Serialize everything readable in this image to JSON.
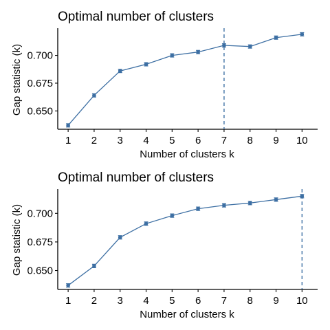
{
  "chart_data": [
    {
      "type": "line",
      "title": "Optimal number of clusters",
      "xlabel": "Number of clusters k",
      "ylabel": "Gap statistic (k)",
      "x": [
        1,
        2,
        3,
        4,
        5,
        6,
        7,
        8,
        9,
        10
      ],
      "xticks": [
        "1",
        "2",
        "3",
        "4",
        "5",
        "6",
        "7",
        "8",
        "9",
        "10"
      ],
      "values": [
        0.637,
        0.664,
        0.686,
        0.692,
        0.7,
        0.703,
        0.709,
        0.708,
        0.716,
        0.719
      ],
      "error": 0.0015,
      "yticks": [
        0.65,
        0.675,
        0.7
      ],
      "ytick_labels": [
        "0.650",
        "0.675",
        "0.700"
      ],
      "ylim": [
        0.6335,
        0.7245
      ],
      "xlim": [
        0.6,
        10.6
      ],
      "optimal_k": 7,
      "grid": false,
      "color": "#3d6fa3"
    },
    {
      "type": "line",
      "title": "Optimal number of clusters",
      "xlabel": "Number of clusters k",
      "ylabel": "Gap statistic (k)",
      "x": [
        1,
        2,
        3,
        4,
        5,
        6,
        7,
        8,
        9,
        10
      ],
      "xticks": [
        "1",
        "2",
        "3",
        "4",
        "5",
        "6",
        "7",
        "8",
        "9",
        "10"
      ],
      "values": [
        0.637,
        0.654,
        0.679,
        0.691,
        0.698,
        0.704,
        0.707,
        0.709,
        0.712,
        0.715
      ],
      "error": 0.0015,
      "yticks": [
        0.65,
        0.675,
        0.7
      ],
      "ytick_labels": [
        "0.650",
        "0.675",
        "0.700"
      ],
      "ylim": [
        0.6335,
        0.7212
      ],
      "xlim": [
        0.6,
        10.6
      ],
      "optimal_k": 10,
      "grid": false,
      "color": "#3d6fa3"
    }
  ]
}
